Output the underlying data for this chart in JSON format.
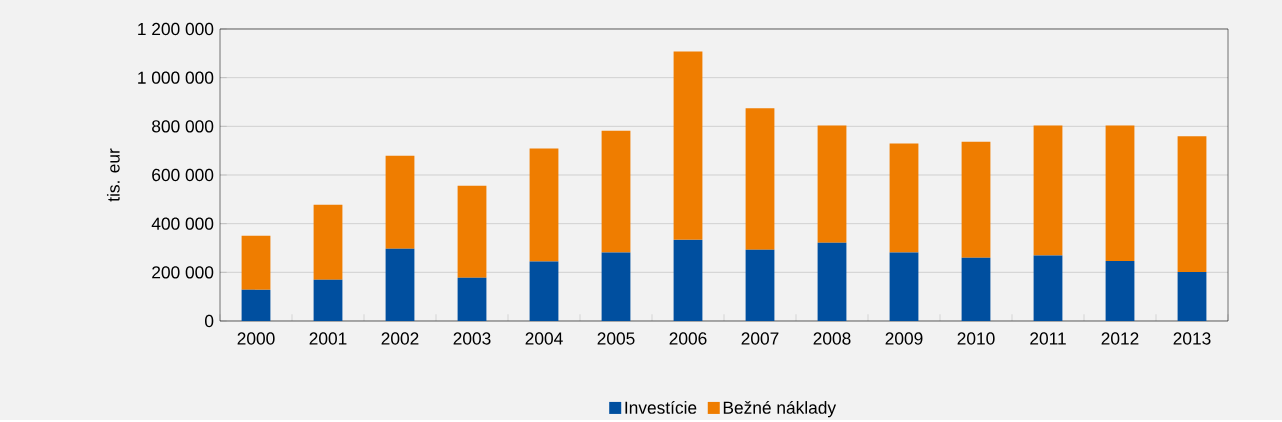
{
  "chart_data": {
    "type": "bar",
    "stacked": true,
    "ylabel": "tis. eur",
    "categories": [
      "2000",
      "2001",
      "2002",
      "2003",
      "2004",
      "2005",
      "2006",
      "2007",
      "2008",
      "2009",
      "2010",
      "2011",
      "2012",
      "2013"
    ],
    "series": [
      {
        "name": "Investície",
        "color": "#004f9f",
        "values": [
          128000,
          169000,
          297000,
          178000,
          244000,
          281000,
          334000,
          293000,
          322000,
          281000,
          260000,
          269000,
          247000,
          201000
        ]
      },
      {
        "name": "Bežné náklady",
        "color": "#ef7d00",
        "values": [
          222000,
          309000,
          382000,
          378000,
          465000,
          501000,
          773000,
          581000,
          481000,
          448000,
          477000,
          534000,
          556000,
          558000
        ]
      }
    ],
    "ylim": [
      0,
      1200000
    ],
    "yticks": [
      0,
      {
        "value": 200000,
        "label": "200 000"
      },
      {
        "value": 400000,
        "label": "400 000"
      },
      {
        "value": 600000,
        "label": "600 000"
      },
      {
        "value": 800000,
        "label": "800 000"
      },
      {
        "value": 1000000,
        "label": "1 000 000"
      },
      {
        "value": 1200000,
        "label": "1 200 000"
      }
    ],
    "grid": "y",
    "legend": "bottom"
  }
}
